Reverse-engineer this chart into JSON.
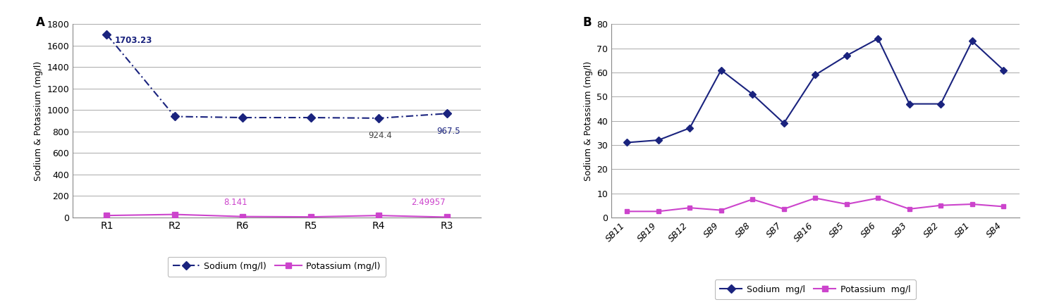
{
  "chart_A": {
    "categories": [
      "R1",
      "R2",
      "R6",
      "R5",
      "R4",
      "R3"
    ],
    "sodium": [
      1703.23,
      940,
      930,
      930,
      924.4,
      967.5
    ],
    "potassium": [
      18,
      28,
      8.141,
      5,
      18,
      2.49957
    ],
    "sodium_color": "#1a237e",
    "potassium_color": "#cc44cc",
    "ylabel": "Sodium & Potassium (mg/l)",
    "ylim": [
      0,
      1800
    ],
    "yticks": [
      0,
      200,
      400,
      600,
      800,
      1000,
      1200,
      1400,
      1600,
      1800
    ],
    "panel_label": "A"
  },
  "chart_B": {
    "categories": [
      "SB11",
      "SB19",
      "SB12",
      "SB9",
      "SB8",
      "SB7",
      "SB16",
      "SB5",
      "SB6",
      "SB3",
      "SB2",
      "SB1",
      "SB4"
    ],
    "sodium": [
      31,
      32,
      37,
      61,
      51,
      39,
      59,
      67,
      74,
      47,
      47,
      73,
      61
    ],
    "potassium": [
      2.5,
      2.5,
      4.0,
      3.0,
      7.5,
      3.5,
      8.0,
      5.5,
      8.0,
      3.5,
      5.0,
      5.5,
      4.5
    ],
    "sodium_color": "#1a237e",
    "potassium_color": "#cc44cc",
    "ylabel": "Sodium & Potassium (mg/l)",
    "ylim": [
      0,
      80
    ],
    "yticks": [
      0,
      10,
      20,
      30,
      40,
      50,
      60,
      70,
      80
    ],
    "panel_label": "B"
  },
  "bg_color": "#ffffff",
  "grid_color": "#aaaaaa",
  "spine_color": "#888888"
}
